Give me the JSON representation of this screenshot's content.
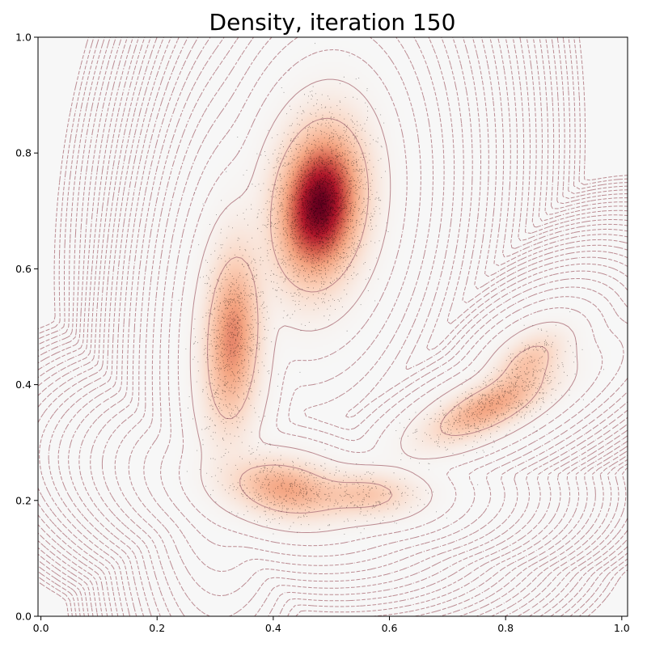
{
  "chart_data": {
    "type": "heatmap",
    "title": "Density, iteration 150",
    "xlabel": "",
    "ylabel": "",
    "xlim": [
      -0.005,
      1.01
    ],
    "ylim": [
      0.0,
      1.0
    ],
    "x_ticks": [
      "0.0",
      "0.2",
      "0.4",
      "0.6",
      "0.8",
      "1.0"
    ],
    "x_tick_values": [
      0.0,
      0.2,
      0.4,
      0.6,
      0.8,
      1.0
    ],
    "y_ticks": [
      "0.0",
      "0.2",
      "0.4",
      "0.6",
      "0.8",
      "1.0"
    ],
    "y_tick_values": [
      0.0,
      0.2,
      0.4,
      0.6,
      0.8,
      1.0
    ],
    "grid": false,
    "colormap": [
      "#f7f7f7",
      "#fbd0b9",
      "#f4a582",
      "#d6604d",
      "#b2182b",
      "#67001f"
    ],
    "contour_color": "#b07880",
    "sample_color": "#000000",
    "density_modes": [
      {
        "x": 0.48,
        "y": 0.71,
        "weight": 1.0
      },
      {
        "x": 0.33,
        "y": 0.48,
        "weight": 0.45
      },
      {
        "x": 0.42,
        "y": 0.22,
        "weight": 0.35
      },
      {
        "x": 0.56,
        "y": 0.21,
        "weight": 0.2
      },
      {
        "x": 0.77,
        "y": 0.36,
        "weight": 0.35
      },
      {
        "x": 0.84,
        "y": 0.44,
        "weight": 0.2
      }
    ]
  }
}
